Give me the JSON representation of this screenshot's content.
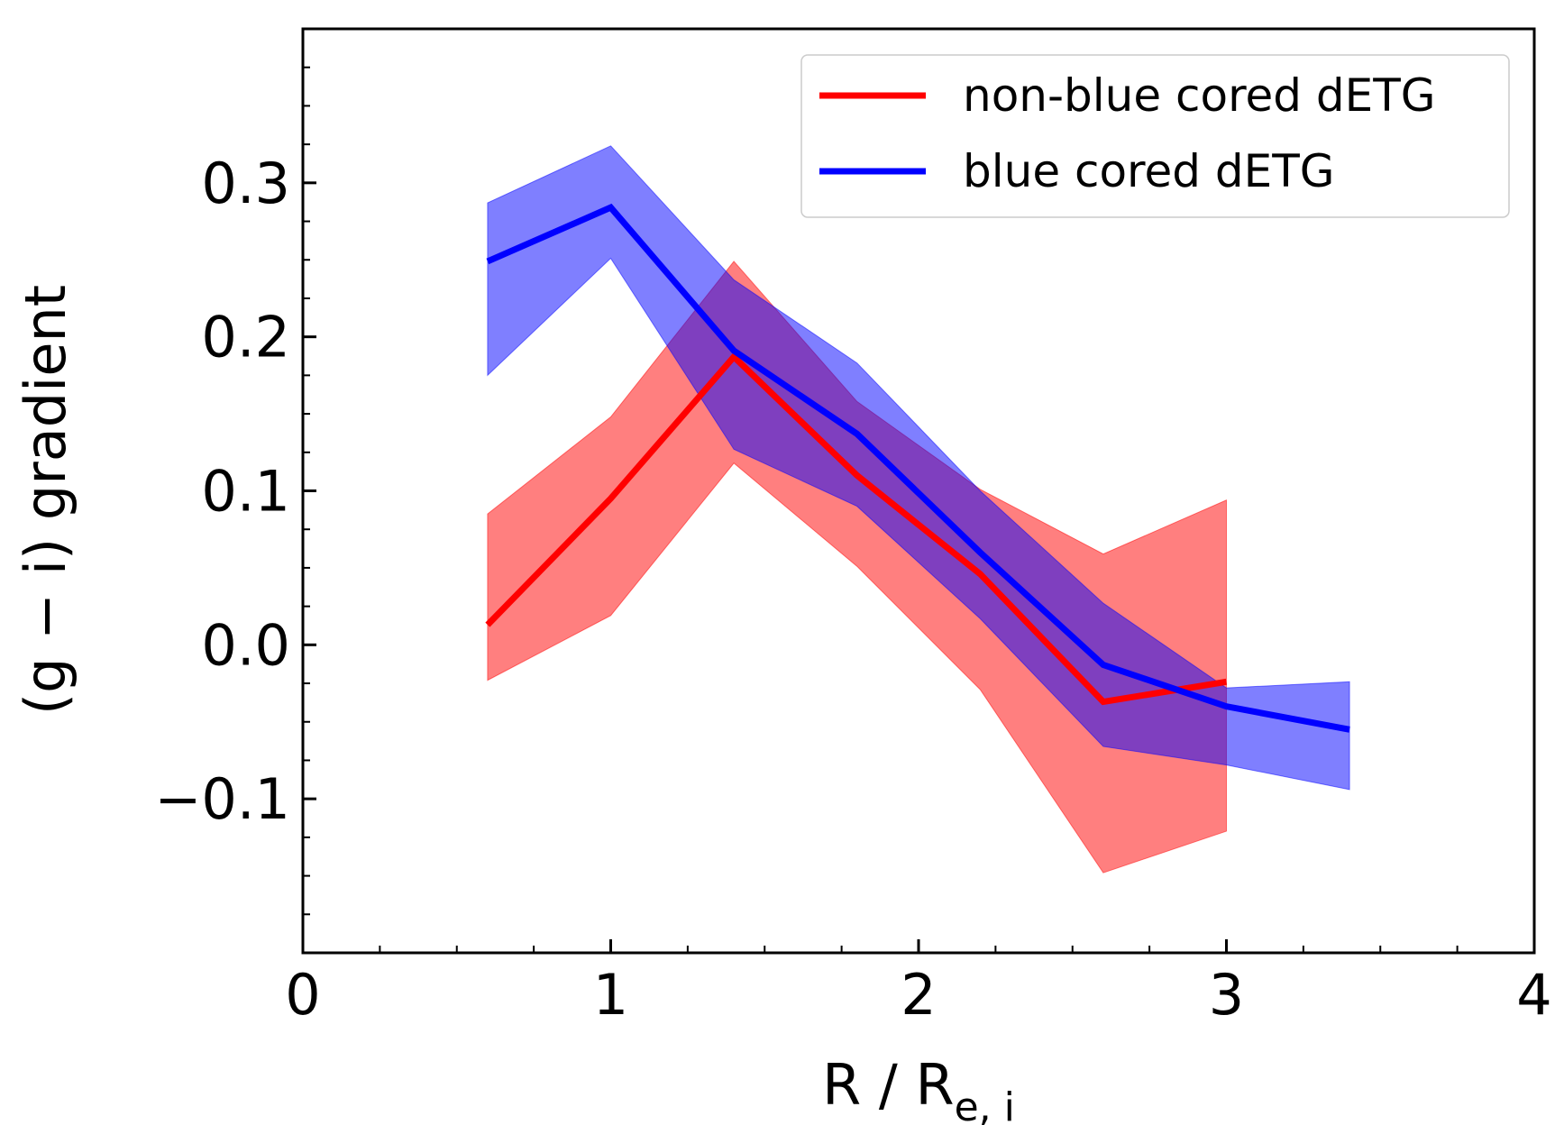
{
  "chart_data": {
    "type": "line",
    "title": "",
    "xlabel": {
      "main": "R / R",
      "sub": "e, i"
    },
    "ylabel": "(g − i)  gradient",
    "xlim": [
      0,
      4
    ],
    "ylim": [
      -0.2,
      0.4
    ],
    "x_ticks": [
      0,
      1,
      2,
      3,
      4
    ],
    "x_tick_labels": [
      "0",
      "1",
      "2",
      "3",
      "4"
    ],
    "y_ticks": [
      -0.1,
      0.0,
      0.1,
      0.2,
      0.3
    ],
    "y_tick_labels": [
      "−0.1",
      "0.0",
      "0.1",
      "0.2",
      "0.3"
    ],
    "legend_position": "top-right",
    "series": [
      {
        "name": "non-blue cored dETG",
        "color": "#ff0000",
        "fill_color": "#ff0000",
        "x": [
          0.6,
          1.0,
          1.4,
          1.8,
          2.2,
          2.6,
          3.0
        ],
        "y": [
          0.013,
          0.095,
          0.187,
          0.11,
          0.046,
          -0.037,
          -0.024
        ],
        "lower": [
          -0.023,
          0.019,
          0.118,
          0.051,
          -0.029,
          -0.148,
          -0.121
        ],
        "upper": [
          0.085,
          0.148,
          0.249,
          0.158,
          0.101,
          0.059,
          0.094
        ]
      },
      {
        "name": "blue cored dETG",
        "color": "#0000ff",
        "fill_color": "#0000ff",
        "x": [
          0.6,
          1.0,
          1.4,
          1.8,
          2.2,
          2.6,
          3.0,
          3.4
        ],
        "y": [
          0.249,
          0.284,
          0.191,
          0.137,
          0.06,
          -0.013,
          -0.04,
          -0.055
        ],
        "lower": [
          0.175,
          0.251,
          0.127,
          0.09,
          0.017,
          -0.066,
          -0.078,
          -0.094
        ],
        "upper": [
          0.287,
          0.324,
          0.237,
          0.183,
          0.1,
          0.027,
          -0.028,
          -0.024
        ]
      }
    ]
  }
}
